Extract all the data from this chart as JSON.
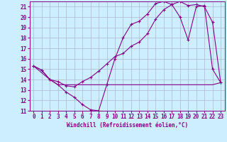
{
  "xlabel": "Windchill (Refroidissement éolien,°C)",
  "bg_color": "#cceeff",
  "grid_color": "#b0b8cc",
  "line_color": "#880088",
  "xlim": [
    -0.5,
    23.5
  ],
  "ylim": [
    11,
    21.5
  ],
  "yticks": [
    11,
    12,
    13,
    14,
    15,
    16,
    17,
    18,
    19,
    20,
    21
  ],
  "xticks": [
    0,
    1,
    2,
    3,
    4,
    5,
    6,
    7,
    8,
    9,
    10,
    11,
    12,
    13,
    14,
    15,
    16,
    17,
    18,
    19,
    20,
    21,
    22,
    23
  ],
  "line1_x": [
    0,
    1,
    2,
    3,
    4,
    5,
    6,
    7,
    8,
    9,
    10,
    11,
    12,
    13,
    14,
    15,
    16,
    17,
    18,
    19,
    20,
    21,
    22,
    23
  ],
  "line1_y": [
    15.3,
    14.9,
    14.0,
    13.5,
    12.8,
    12.3,
    11.6,
    11.1,
    11.0,
    13.5,
    16.0,
    18.0,
    19.3,
    19.6,
    20.3,
    21.3,
    21.5,
    21.2,
    20.0,
    17.8,
    21.0,
    21.1,
    15.0,
    13.7
  ],
  "line2_x": [
    0,
    2,
    3,
    8,
    9,
    14,
    22,
    23
  ],
  "line2_y": [
    15.3,
    14.0,
    13.5,
    13.5,
    13.5,
    13.5,
    13.5,
    13.7
  ],
  "line3_x": [
    0,
    1,
    2,
    3,
    4,
    5,
    6,
    7,
    8,
    9,
    10,
    11,
    12,
    13,
    14,
    15,
    16,
    17,
    18,
    19,
    20,
    21,
    22,
    23
  ],
  "line3_y": [
    15.3,
    14.9,
    14.0,
    13.8,
    13.4,
    13.3,
    13.8,
    14.2,
    14.8,
    15.5,
    16.2,
    16.5,
    17.2,
    17.6,
    18.4,
    19.8,
    20.7,
    21.2,
    21.5,
    21.1,
    21.2,
    21.0,
    19.5,
    13.7
  ]
}
